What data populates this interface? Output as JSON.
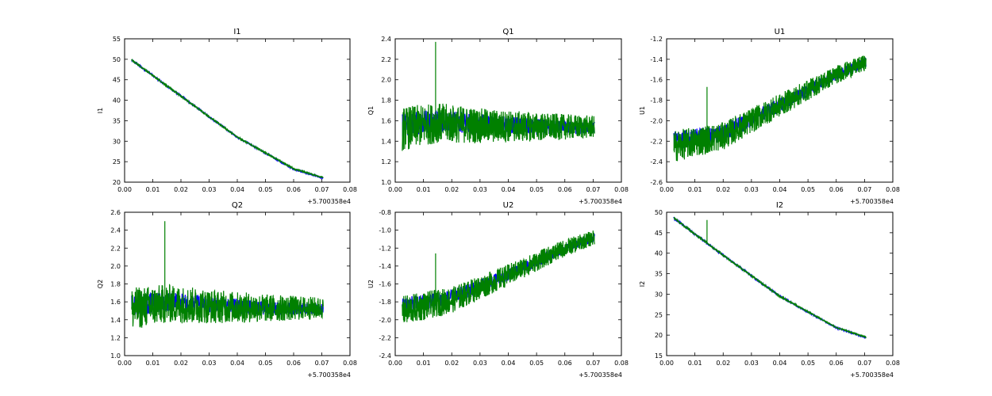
{
  "chart_data": [
    {
      "type": "line",
      "title": "I1",
      "xlabel": "",
      "ylabel": "I1",
      "xlim": [
        0.0,
        0.08
      ],
      "ylim": [
        20,
        55
      ],
      "xticks": [
        "0.00",
        "0.01",
        "0.02",
        "0.03",
        "0.04",
        "0.05",
        "0.06",
        "0.07",
        "0.08"
      ],
      "yticks": [
        "20",
        "25",
        "30",
        "35",
        "40",
        "45",
        "50",
        "55"
      ],
      "x_offset_label": "+5.700358e4",
      "x_range": [
        0.0025,
        0.0705
      ],
      "series": [
        {
          "color": "#0000ff",
          "trend": [
            [
              0.0025,
              49.8
            ],
            [
              0.02,
              41.0
            ],
            [
              0.04,
              31.0
            ],
            [
              0.06,
              23.2
            ],
            [
              0.0705,
              21.0
            ]
          ],
          "noise": 0.25,
          "spikes": []
        },
        {
          "color": "#008000",
          "trend": [
            [
              0.0025,
              49.8
            ],
            [
              0.02,
              41.0
            ],
            [
              0.04,
              31.0
            ],
            [
              0.06,
              23.3
            ],
            [
              0.0705,
              21.1
            ]
          ],
          "noise": 0.2,
          "spikes": []
        }
      ]
    },
    {
      "type": "line",
      "title": "Q1",
      "xlabel": "",
      "ylabel": "Q1",
      "xlim": [
        0.0,
        0.08
      ],
      "ylim": [
        1.0,
        2.4
      ],
      "xticks": [
        "0.00",
        "0.01",
        "0.02",
        "0.03",
        "0.04",
        "0.05",
        "0.06",
        "0.07",
        "0.08"
      ],
      "yticks": [
        "1.0",
        "1.2",
        "1.4",
        "1.6",
        "1.8",
        "2.0",
        "2.2",
        "2.4"
      ],
      "x_offset_label": "+5.700358e4",
      "x_range": [
        0.0025,
        0.0705
      ],
      "series": [
        {
          "color": "#0000ff",
          "trend": [
            [
              0.0025,
              1.56
            ],
            [
              0.015,
              1.6
            ],
            [
              0.03,
              1.57
            ],
            [
              0.05,
              1.54
            ],
            [
              0.0705,
              1.53
            ]
          ],
          "noise": 0.1,
          "spikes": []
        },
        {
          "color": "#008000",
          "trend": [
            [
              0.0025,
              1.52
            ],
            [
              0.015,
              1.58
            ],
            [
              0.03,
              1.55
            ],
            [
              0.05,
              1.54
            ],
            [
              0.0705,
              1.54
            ]
          ],
          "noise": 0.18,
          "spikes": [
            [
              0.0143,
              2.37
            ]
          ]
        }
      ]
    },
    {
      "type": "line",
      "title": "U1",
      "xlabel": "",
      "ylabel": "U1",
      "xlim": [
        0.0,
        0.08
      ],
      "ylim": [
        -2.6,
        -1.2
      ],
      "xticks": [
        "0.00",
        "0.01",
        "0.02",
        "0.03",
        "0.04",
        "0.05",
        "0.06",
        "0.07",
        "0.08"
      ],
      "yticks": [
        "-2.6",
        "-2.4",
        "-2.2",
        "-2.0",
        "-1.8",
        "-1.6",
        "-1.4",
        "-1.2"
      ],
      "x_offset_label": "+5.700358e4",
      "x_range": [
        0.0025,
        0.0705
      ],
      "series": [
        {
          "color": "#0000ff",
          "trend": [
            [
              0.0025,
              -2.2
            ],
            [
              0.02,
              -2.12
            ],
            [
              0.04,
              -1.85
            ],
            [
              0.06,
              -1.55
            ],
            [
              0.0705,
              -1.43
            ]
          ],
          "noise": 0.08,
          "spikes": []
        },
        {
          "color": "#008000",
          "trend": [
            [
              0.0025,
              -2.25
            ],
            [
              0.02,
              -2.15
            ],
            [
              0.04,
              -1.85
            ],
            [
              0.06,
              -1.55
            ],
            [
              0.0705,
              -1.43
            ]
          ],
          "noise": 0.13,
          "spikes": [
            [
              0.0143,
              -1.67
            ]
          ]
        }
      ]
    },
    {
      "type": "line",
      "title": "Q2",
      "xlabel": "",
      "ylabel": "Q2",
      "xlim": [
        0.0,
        0.08
      ],
      "ylim": [
        1.0,
        2.6
      ],
      "xticks": [
        "0.00",
        "0.01",
        "0.02",
        "0.03",
        "0.04",
        "0.05",
        "0.06",
        "0.07",
        "0.08"
      ],
      "yticks": [
        "1.0",
        "1.2",
        "1.4",
        "1.6",
        "1.8",
        "2.0",
        "2.2",
        "2.4",
        "2.6"
      ],
      "x_offset_label": "+5.700358e4",
      "x_range": [
        0.0025,
        0.0705
      ],
      "series": [
        {
          "color": "#0000ff",
          "trend": [
            [
              0.0025,
              1.56
            ],
            [
              0.015,
              1.6
            ],
            [
              0.03,
              1.57
            ],
            [
              0.05,
              1.53
            ],
            [
              0.0705,
              1.52
            ]
          ],
          "noise": 0.1,
          "spikes": []
        },
        {
          "color": "#008000",
          "trend": [
            [
              0.0025,
              1.52
            ],
            [
              0.015,
              1.58
            ],
            [
              0.03,
              1.55
            ],
            [
              0.05,
              1.53
            ],
            [
              0.0705,
              1.53
            ]
          ],
          "noise": 0.2,
          "spikes": [
            [
              0.0143,
              2.5
            ]
          ]
        }
      ]
    },
    {
      "type": "line",
      "title": "U2",
      "xlabel": "",
      "ylabel": "U2",
      "xlim": [
        0.0,
        0.08
      ],
      "ylim": [
        -2.4,
        -0.8
      ],
      "xticks": [
        "0.00",
        "0.01",
        "0.02",
        "0.03",
        "0.04",
        "0.05",
        "0.06",
        "0.07",
        "0.08"
      ],
      "yticks": [
        "-2.4",
        "-2.2",
        "-2.0",
        "-1.8",
        "-1.6",
        "-1.4",
        "-1.2",
        "-1.0",
        "-0.8"
      ],
      "x_offset_label": "+5.700358e4",
      "x_range": [
        0.0025,
        0.0705
      ],
      "series": [
        {
          "color": "#0000ff",
          "trend": [
            [
              0.0025,
              -1.85
            ],
            [
              0.02,
              -1.75
            ],
            [
              0.04,
              -1.5
            ],
            [
              0.06,
              -1.2
            ],
            [
              0.0705,
              -1.08
            ]
          ],
          "noise": 0.08,
          "spikes": []
        },
        {
          "color": "#008000",
          "trend": [
            [
              0.0025,
              -1.9
            ],
            [
              0.02,
              -1.78
            ],
            [
              0.04,
              -1.5
            ],
            [
              0.06,
              -1.2
            ],
            [
              0.0705,
              -1.08
            ]
          ],
          "noise": 0.14,
          "spikes": [
            [
              0.0143,
              -1.26
            ]
          ]
        }
      ]
    },
    {
      "type": "line",
      "title": "I2",
      "xlabel": "",
      "ylabel": "I2",
      "xlim": [
        0.0,
        0.08
      ],
      "ylim": [
        15,
        50
      ],
      "xticks": [
        "0.00",
        "0.01",
        "0.02",
        "0.03",
        "0.04",
        "0.05",
        "0.06",
        "0.07",
        "0.08"
      ],
      "yticks": [
        "15",
        "20",
        "25",
        "30",
        "35",
        "40",
        "45",
        "50"
      ],
      "x_offset_label": "+5.700358e4",
      "x_range": [
        0.0025,
        0.0705
      ],
      "series": [
        {
          "color": "#0000ff",
          "trend": [
            [
              0.0025,
              48.6
            ],
            [
              0.02,
              39.5
            ],
            [
              0.04,
              29.5
            ],
            [
              0.06,
              21.8
            ],
            [
              0.0705,
              19.4
            ]
          ],
          "noise": 0.25,
          "spikes": []
        },
        {
          "color": "#008000",
          "trend": [
            [
              0.0025,
              48.6
            ],
            [
              0.02,
              39.5
            ],
            [
              0.04,
              29.5
            ],
            [
              0.06,
              21.9
            ],
            [
              0.0705,
              19.5
            ]
          ],
          "noise": 0.2,
          "spikes": [
            [
              0.0143,
              48.1
            ]
          ]
        }
      ]
    }
  ]
}
